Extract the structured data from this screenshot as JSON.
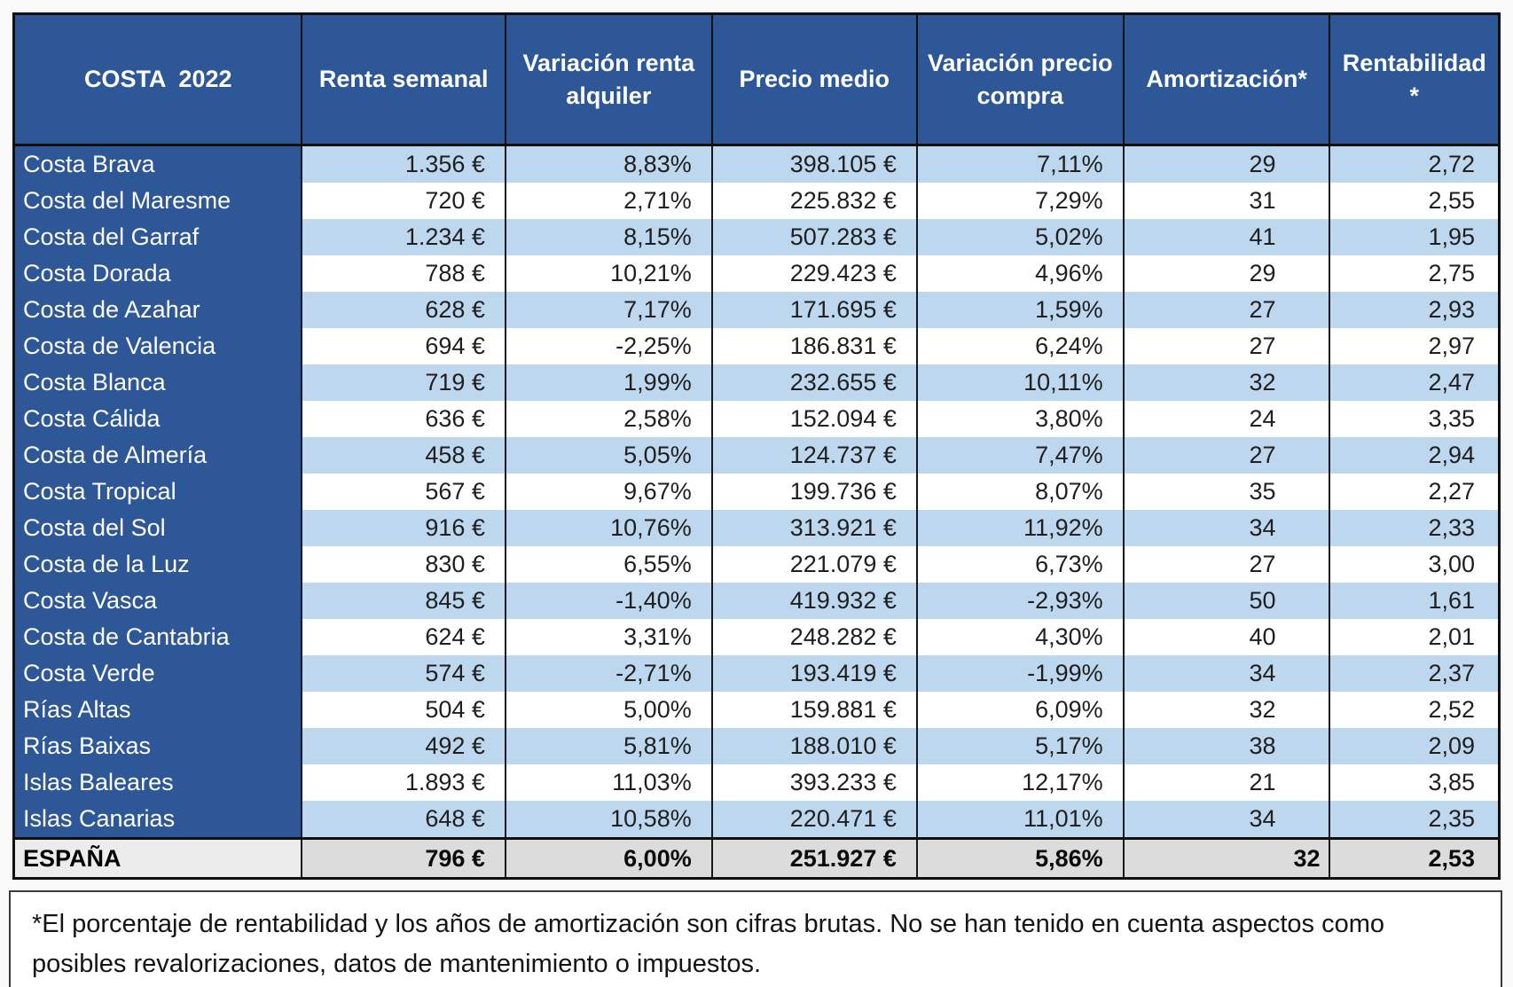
{
  "chart_data": {
    "type": "table",
    "title": "COSTA  2022",
    "columns": [
      "COSTA  2022",
      "Renta semanal",
      "Variación renta alquiler",
      "Precio medio",
      "Variación precio compra",
      "Amortización*",
      "Rentabilidad *"
    ],
    "rows": [
      {
        "cells": [
          "Costa Brava",
          "1.356 €",
          "8,83%",
          "398.105 €",
          "7,11%",
          "29",
          "2,72"
        ]
      },
      {
        "cells": [
          "Costa del Maresme",
          "720 €",
          "2,71%",
          "225.832 €",
          "7,29%",
          "31",
          "2,55"
        ]
      },
      {
        "cells": [
          "Costa del Garraf",
          "1.234 €",
          "8,15%",
          "507.283 €",
          "5,02%",
          "41",
          "1,95"
        ]
      },
      {
        "cells": [
          "Costa Dorada",
          "788 €",
          "10,21%",
          "229.423 €",
          "4,96%",
          "29",
          "2,75"
        ]
      },
      {
        "cells": [
          "Costa de Azahar",
          "628 €",
          "7,17%",
          "171.695 €",
          "1,59%",
          "27",
          "2,93"
        ]
      },
      {
        "cells": [
          "Costa de Valencia",
          "694 €",
          "-2,25%",
          "186.831 €",
          "6,24%",
          "27",
          "2,97"
        ]
      },
      {
        "cells": [
          "Costa Blanca",
          "719 €",
          "1,99%",
          "232.655 €",
          "10,11%",
          "32",
          "2,47"
        ]
      },
      {
        "cells": [
          "Costa Cálida",
          "636 €",
          "2,58%",
          "152.094 €",
          "3,80%",
          "24",
          "3,35"
        ]
      },
      {
        "cells": [
          "Costa de Almería",
          "458 €",
          "5,05%",
          "124.737 €",
          "7,47%",
          "27",
          "2,94"
        ]
      },
      {
        "cells": [
          "Costa Tropical",
          "567 €",
          "9,67%",
          "199.736 €",
          "8,07%",
          "35",
          "2,27"
        ]
      },
      {
        "cells": [
          "Costa del Sol",
          "916 €",
          "10,76%",
          "313.921 €",
          "11,92%",
          "34",
          "2,33"
        ]
      },
      {
        "cells": [
          "Costa de la Luz",
          "830 €",
          "6,55%",
          "221.079 €",
          "6,73%",
          "27",
          "3,00"
        ]
      },
      {
        "cells": [
          "Costa Vasca",
          "845 €",
          "-1,40%",
          "419.932 €",
          "-2,93%",
          "50",
          "1,61"
        ]
      },
      {
        "cells": [
          "Costa de Cantabria",
          "624 €",
          "3,31%",
          "248.282 €",
          "4,30%",
          "40",
          "2,01"
        ]
      },
      {
        "cells": [
          "Costa Verde",
          "574 €",
          "-2,71%",
          "193.419 €",
          "-1,99%",
          "34",
          "2,37"
        ]
      },
      {
        "cells": [
          "Rías Altas",
          "504 €",
          "5,00%",
          "159.881 €",
          "6,09%",
          "32",
          "2,52"
        ]
      },
      {
        "cells": [
          "Rías Baixas",
          "492 €",
          "5,81%",
          "188.010 €",
          "5,17%",
          "38",
          "2,09"
        ]
      },
      {
        "cells": [
          "Islas Baleares",
          "1.893 €",
          "11,03%",
          "393.233 €",
          "12,17%",
          "21",
          "3,85"
        ]
      },
      {
        "cells": [
          "Islas Canarias",
          "648 €",
          "10,58%",
          "220.471 €",
          "11,01%",
          "34",
          "2,35"
        ]
      }
    ],
    "total_row": {
      "cells": [
        "ESPAÑA",
        "796 €",
        "6,00%",
        "251.927 €",
        "5,86%",
        "32",
        "2,53"
      ]
    },
    "layout": {
      "striping": "alternating light-blue / white, first data row light blue",
      "header_background": "#2e5797",
      "stripe_blue": "#bdd7ee",
      "total_background": "#dcdcdc",
      "name_column_background": "#2e5797"
    }
  },
  "footnote": "*El porcentaje de rentabilidad y los años de amortización son cifras brutas. No se han tenido en cuenta aspectos como posibles revalorizaciones, datos de mantenimiento o impuestos.",
  "colors": {
    "header_blue": "#2e5797",
    "row_light_blue": "#bdd7ee",
    "row_white": "#ffffff",
    "total_gray": "#dcdcdc",
    "border_black": "#101010",
    "text_dark": "#1f1f1f",
    "text_white": "#ffffff"
  }
}
